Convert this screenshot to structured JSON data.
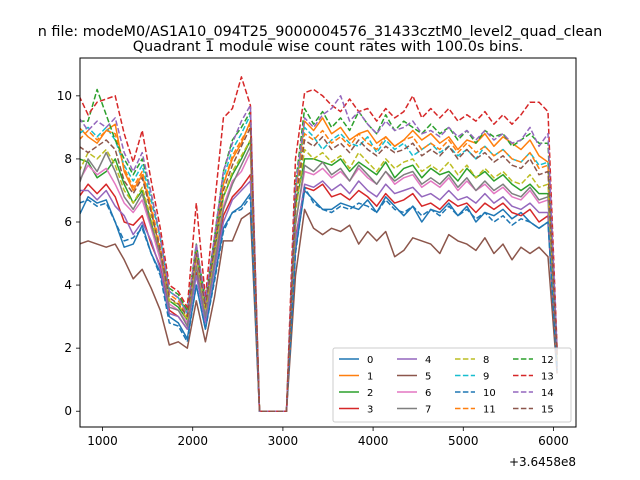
{
  "figure": {
    "suptitle": "n file: modeM0/AS1A10_094T25_9000004576_31433cztM0_level2_quad_clean",
    "title": "Quadrant 1 module wise count rates with 100.0s bins.",
    "x_offset_label": "+3.6458e8"
  },
  "chart_data": {
    "type": "line",
    "title": "Quadrant 1 module wise count rates with 100.0s bins.",
    "xlabel": "",
    "ylabel": "",
    "x_offset": 364580000,
    "xlim": [
      750,
      6250
    ],
    "ylim": [
      -0.5,
      11.2
    ],
    "x_ticks": [
      1000,
      2000,
      3000,
      4000,
      5000,
      6000
    ],
    "y_ticks": [
      0,
      2,
      4,
      6,
      8,
      10
    ],
    "grid": false,
    "legend": {
      "placement": "lower-right",
      "columns": 4
    },
    "x": [
      740,
      840,
      940,
      1040,
      1140,
      1240,
      1340,
      1440,
      1540,
      1640,
      1740,
      1840,
      1940,
      2040,
      2140,
      2240,
      2340,
      2440,
      2540,
      2640,
      2740,
      2840,
      2940,
      3040,
      3140,
      3240,
      3340,
      3440,
      3540,
      3640,
      3740,
      3840,
      3940,
      4040,
      4140,
      4240,
      4340,
      4440,
      4540,
      4640,
      4740,
      4840,
      4940,
      5040,
      5140,
      5240,
      5340,
      5440,
      5540,
      5640,
      5740,
      5840,
      5940,
      6040
    ],
    "series": [
      {
        "name": "0",
        "color": "#1f77b4",
        "dash": "solid",
        "values": [
          6.2,
          6.8,
          6.6,
          6.7,
          6.0,
          5.2,
          5.3,
          5.9,
          5.0,
          4.4,
          3.0,
          2.8,
          2.3,
          4.0,
          2.6,
          4.2,
          5.8,
          6.3,
          6.5,
          6.9,
          0,
          0,
          0,
          0,
          5.1,
          7.0,
          6.7,
          6.4,
          6.4,
          6.6,
          6.5,
          6.4,
          6.7,
          6.3,
          6.8,
          6.5,
          6.2,
          6.5,
          6.0,
          6.4,
          6.3,
          6.6,
          6.2,
          6.5,
          6.0,
          6.3,
          6.2,
          6.4,
          6.1,
          6.3,
          6.0,
          5.8,
          6.0,
          1.3
        ]
      },
      {
        "name": "1",
        "color": "#ff7f0e",
        "dash": "solid",
        "values": [
          9.0,
          8.7,
          8.5,
          8.9,
          9.1,
          7.6,
          7.0,
          7.5,
          6.4,
          5.0,
          3.8,
          3.6,
          3.2,
          5.1,
          3.5,
          5.3,
          7.2,
          8.0,
          8.5,
          9.2,
          0,
          0,
          0,
          0,
          6.9,
          9.2,
          8.9,
          9.3,
          8.8,
          9.0,
          8.6,
          8.8,
          8.9,
          8.5,
          8.7,
          8.4,
          8.6,
          8.9,
          8.6,
          8.8,
          8.5,
          8.7,
          8.3,
          8.6,
          8.5,
          8.8,
          8.4,
          8.7,
          8.5,
          8.3,
          8.6,
          8.1,
          7.9,
          1.8
        ]
      },
      {
        "name": "2",
        "color": "#2ca02c",
        "dash": "solid",
        "values": [
          8.0,
          7.9,
          7.4,
          7.6,
          8.0,
          7.2,
          6.6,
          7.0,
          6.0,
          4.8,
          3.5,
          3.3,
          2.9,
          4.8,
          3.2,
          5.0,
          6.8,
          7.5,
          8.0,
          8.6,
          0,
          0,
          0,
          0,
          6.5,
          8.0,
          8.0,
          7.9,
          7.8,
          8.0,
          7.6,
          7.9,
          7.7,
          7.5,
          7.9,
          7.4,
          7.7,
          7.8,
          7.4,
          7.7,
          7.5,
          7.6,
          7.3,
          7.7,
          7.4,
          7.6,
          7.3,
          7.5,
          7.2,
          7.0,
          7.2,
          6.9,
          6.9,
          1.6
        ]
      },
      {
        "name": "3",
        "color": "#d62728",
        "dash": "solid",
        "values": [
          6.8,
          7.2,
          6.9,
          7.2,
          6.8,
          6.0,
          5.9,
          6.2,
          5.3,
          4.6,
          3.2,
          3.0,
          2.6,
          4.4,
          2.9,
          4.6,
          6.2,
          6.8,
          7.1,
          7.5,
          0,
          0,
          0,
          0,
          5.5,
          7.1,
          7.0,
          7.2,
          6.8,
          6.9,
          6.7,
          7.0,
          6.8,
          6.5,
          6.9,
          6.6,
          6.7,
          6.9,
          6.5,
          6.6,
          6.4,
          6.7,
          6.5,
          6.6,
          6.3,
          6.6,
          6.4,
          6.6,
          6.3,
          6.2,
          6.4,
          6.0,
          6.2,
          1.4
        ]
      },
      {
        "name": "4",
        "color": "#9467bd",
        "dash": "solid",
        "values": [
          7.0,
          7.0,
          6.7,
          7.0,
          6.5,
          6.2,
          5.6,
          6.0,
          5.4,
          4.5,
          3.1,
          3.0,
          2.6,
          4.3,
          2.8,
          4.5,
          6.0,
          6.7,
          7.0,
          7.3,
          0,
          0,
          0,
          0,
          5.4,
          7.2,
          7.1,
          7.3,
          7.0,
          7.2,
          6.9,
          7.3,
          7.0,
          6.8,
          7.2,
          6.9,
          7.0,
          7.1,
          6.8,
          6.9,
          6.7,
          7.0,
          6.7,
          6.8,
          6.6,
          6.9,
          6.6,
          6.8,
          6.5,
          6.4,
          6.6,
          6.3,
          6.3,
          1.4
        ]
      },
      {
        "name": "5",
        "color": "#8c564b",
        "dash": "solid",
        "values": [
          5.3,
          5.4,
          5.3,
          5.2,
          5.3,
          4.8,
          4.2,
          4.5,
          3.9,
          3.2,
          2.1,
          2.2,
          2.0,
          3.5,
          2.2,
          3.6,
          5.4,
          5.4,
          6.1,
          6.3,
          0,
          0,
          0,
          0,
          4.3,
          6.4,
          5.8,
          5.6,
          5.8,
          5.7,
          5.9,
          5.3,
          5.7,
          5.4,
          5.7,
          4.9,
          5.1,
          5.5,
          5.4,
          5.3,
          5.0,
          5.6,
          5.4,
          5.3,
          5.1,
          5.5,
          5.0,
          5.3,
          4.8,
          5.2,
          5.0,
          5.2,
          4.9,
          1.2
        ]
      },
      {
        "name": "6",
        "color": "#e377c2",
        "dash": "solid",
        "values": [
          7.3,
          7.8,
          7.5,
          7.7,
          7.2,
          6.6,
          6.3,
          6.7,
          5.8,
          4.8,
          3.4,
          3.2,
          2.8,
          4.7,
          3.1,
          4.8,
          6.5,
          7.3,
          7.6,
          8.2,
          0,
          0,
          0,
          0,
          6.0,
          7.6,
          7.5,
          7.7,
          7.4,
          7.6,
          7.3,
          7.7,
          7.4,
          7.2,
          7.6,
          7.2,
          7.4,
          7.5,
          7.1,
          7.3,
          7.1,
          7.4,
          7.0,
          7.3,
          7.0,
          7.2,
          6.9,
          7.1,
          6.8,
          6.7,
          7.0,
          6.6,
          6.7,
          1.5
        ]
      },
      {
        "name": "7",
        "color": "#7f7f7f",
        "dash": "solid",
        "values": [
          7.2,
          8.0,
          7.6,
          8.2,
          7.6,
          6.8,
          6.4,
          6.9,
          5.9,
          5.0,
          3.3,
          3.2,
          2.7,
          4.6,
          3.0,
          4.7,
          6.4,
          7.2,
          7.8,
          8.4,
          0,
          0,
          0,
          0,
          5.9,
          7.8,
          7.6,
          7.9,
          7.5,
          7.7,
          7.3,
          7.8,
          7.5,
          7.2,
          7.6,
          7.3,
          7.5,
          7.6,
          7.2,
          7.4,
          7.2,
          7.5,
          7.1,
          7.4,
          7.0,
          7.3,
          7.0,
          7.2,
          6.9,
          6.8,
          7.1,
          6.7,
          6.8,
          1.5
        ]
      },
      {
        "name": "8",
        "color": "#bcbd22",
        "dash": "dashed",
        "values": [
          7.6,
          8.2,
          8.0,
          8.3,
          7.8,
          7.0,
          6.6,
          7.1,
          6.1,
          5.1,
          3.5,
          3.4,
          2.9,
          4.9,
          3.2,
          5.0,
          6.8,
          7.6,
          8.1,
          8.6,
          0,
          0,
          0,
          0,
          6.3,
          8.3,
          8.0,
          8.2,
          7.9,
          8.1,
          7.7,
          8.2,
          7.9,
          7.6,
          8.0,
          7.7,
          7.9,
          8.0,
          7.6,
          7.8,
          7.6,
          7.9,
          7.5,
          7.8,
          7.4,
          7.7,
          7.4,
          7.6,
          7.3,
          7.2,
          7.5,
          7.1,
          7.2,
          1.6
        ]
      },
      {
        "name": "9",
        "color": "#17becf",
        "dash": "dashed",
        "values": [
          8.8,
          9.0,
          8.7,
          9.0,
          8.6,
          7.8,
          7.3,
          7.8,
          6.7,
          5.5,
          3.8,
          3.6,
          3.1,
          5.2,
          3.4,
          5.4,
          7.4,
          8.3,
          8.8,
          9.4,
          0,
          0,
          0,
          0,
          6.9,
          9.0,
          8.7,
          8.3,
          8.6,
          8.8,
          8.5,
          8.4,
          8.7,
          8.2,
          8.6,
          8.3,
          8.5,
          8.1,
          8.3,
          8.5,
          8.2,
          8.4,
          8.1,
          8.3,
          8.0,
          8.4,
          8.1,
          8.3,
          8.0,
          7.9,
          8.2,
          7.8,
          7.9,
          1.8
        ]
      },
      {
        "name": "10",
        "color": "#1f77b4",
        "dash": "dashed",
        "values": [
          6.6,
          6.7,
          6.5,
          6.6,
          6.0,
          5.4,
          5.5,
          5.8,
          5.0,
          4.3,
          2.8,
          2.7,
          2.2,
          4.0,
          2.6,
          4.1,
          5.7,
          6.3,
          6.4,
          6.8,
          0,
          0,
          0,
          0,
          5.0,
          7.1,
          6.6,
          6.4,
          6.3,
          6.5,
          6.4,
          6.6,
          6.5,
          6.3,
          6.7,
          6.4,
          6.3,
          6.5,
          6.2,
          6.4,
          6.2,
          6.5,
          6.2,
          6.4,
          6.1,
          6.3,
          6.0,
          6.2,
          5.9,
          6.1,
          6.0,
          5.8,
          6.0,
          1.3
        ]
      },
      {
        "name": "11",
        "color": "#ff7f0e",
        "dash": "dashed",
        "values": [
          8.6,
          8.9,
          8.6,
          8.9,
          8.8,
          7.7,
          7.1,
          7.6,
          6.5,
          5.2,
          3.7,
          3.5,
          3.0,
          5.1,
          3.4,
          5.3,
          7.2,
          8.1,
          8.6,
          9.1,
          0,
          0,
          0,
          0,
          6.8,
          8.8,
          8.6,
          8.9,
          8.5,
          8.7,
          8.4,
          8.8,
          8.5,
          8.3,
          8.7,
          8.4,
          8.6,
          8.7,
          8.3,
          8.5,
          8.3,
          8.6,
          8.2,
          8.5,
          8.2,
          8.4,
          8.1,
          8.3,
          8.0,
          7.9,
          8.2,
          7.7,
          7.8,
          1.8
        ]
      },
      {
        "name": "12",
        "color": "#2ca02c",
        "dash": "dashed",
        "values": [
          9.2,
          9.2,
          10.2,
          9.4,
          8.6,
          8.0,
          7.5,
          8.0,
          6.9,
          5.5,
          3.9,
          3.7,
          3.2,
          5.3,
          3.5,
          5.5,
          7.6,
          8.6,
          9.0,
          9.5,
          0,
          0,
          0,
          0,
          7.2,
          9.6,
          9.1,
          9.5,
          9.0,
          9.3,
          8.9,
          9.5,
          9.1,
          8.8,
          9.4,
          8.9,
          9.2,
          9.0,
          8.8,
          9.1,
          8.8,
          9.0,
          8.6,
          8.9,
          8.5,
          8.9,
          8.7,
          8.8,
          8.4,
          8.6,
          8.8,
          8.5,
          8.5,
          1.9
        ]
      },
      {
        "name": "13",
        "color": "#d62728",
        "dash": "dashed",
        "values": [
          10.0,
          9.4,
          9.8,
          9.9,
          10.0,
          8.8,
          7.9,
          8.9,
          7.3,
          5.8,
          4.0,
          3.8,
          3.3,
          6.6,
          3.6,
          6.5,
          9.3,
          9.6,
          10.6,
          9.7,
          0,
          0,
          0,
          0,
          8.0,
          10.1,
          10.2,
          10.0,
          9.7,
          9.5,
          9.9,
          9.5,
          9.6,
          9.2,
          9.6,
          9.3,
          9.5,
          10.0,
          9.3,
          9.6,
          9.3,
          9.6,
          9.2,
          9.4,
          9.2,
          9.5,
          9.1,
          9.4,
          9.1,
          9.4,
          9.8,
          9.8,
          9.5,
          2.0
        ]
      },
      {
        "name": "14",
        "color": "#9467bd",
        "dash": "dashed",
        "values": [
          9.3,
          8.9,
          9.2,
          9.0,
          9.3,
          8.2,
          7.6,
          8.2,
          6.9,
          5.5,
          3.8,
          3.6,
          3.1,
          5.3,
          3.5,
          5.5,
          7.6,
          8.5,
          9.2,
          9.7,
          0,
          0,
          0,
          0,
          7.1,
          9.3,
          9.0,
          9.4,
          9.6,
          10.0,
          9.2,
          9.5,
          9.1,
          8.8,
          9.2,
          8.9,
          9.0,
          9.2,
          8.8,
          8.9,
          8.7,
          9.0,
          8.7,
          8.9,
          8.6,
          8.9,
          8.6,
          8.8,
          8.5,
          8.6,
          9.0,
          8.4,
          8.8,
          1.9
        ]
      },
      {
        "name": "15",
        "color": "#8c564b",
        "dash": "dashed",
        "values": [
          8.4,
          8.2,
          8.4,
          8.6,
          8.3,
          7.3,
          6.9,
          7.4,
          6.3,
          5.1,
          3.6,
          3.4,
          3.0,
          5.0,
          3.3,
          5.2,
          7.0,
          7.8,
          8.4,
          9.0,
          0,
          0,
          0,
          0,
          6.6,
          8.6,
          8.4,
          8.7,
          8.3,
          8.5,
          8.2,
          8.6,
          8.3,
          8.1,
          8.4,
          8.2,
          8.3,
          8.5,
          8.1,
          8.3,
          8.1,
          8.4,
          8.0,
          8.3,
          8.0,
          8.2,
          7.9,
          8.1,
          7.8,
          7.7,
          8.0,
          7.5,
          7.6,
          1.7
        ]
      }
    ]
  }
}
